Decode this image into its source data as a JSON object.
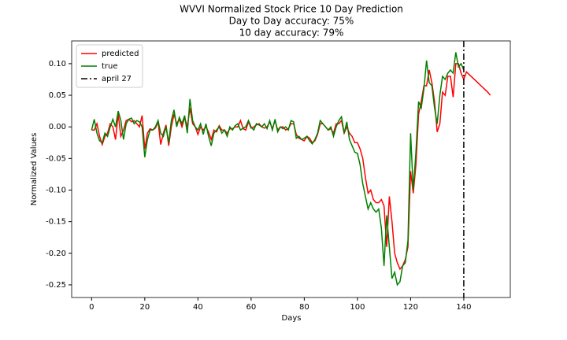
{
  "chart_data": {
    "type": "line",
    "title_lines": [
      "WVVI Normalized Stock Price 10 Day Prediction",
      "Day to Day accuracy: 75%",
      "10 day accuracy: 79%"
    ],
    "xlabel": "Days",
    "ylabel": "Normalized Values",
    "x": [
      0,
      1,
      2,
      3,
      4,
      5,
      6,
      7,
      8,
      9,
      10,
      11,
      12,
      13,
      14,
      15,
      16,
      17,
      18,
      19,
      20,
      21,
      22,
      23,
      24,
      25,
      26,
      27,
      28,
      29,
      30,
      31,
      32,
      33,
      34,
      35,
      36,
      37,
      38,
      39,
      40,
      41,
      42,
      43,
      44,
      45,
      46,
      47,
      48,
      49,
      50,
      51,
      52,
      53,
      54,
      55,
      56,
      57,
      58,
      59,
      60,
      61,
      62,
      63,
      64,
      65,
      66,
      67,
      68,
      69,
      70,
      71,
      72,
      73,
      74,
      75,
      76,
      77,
      78,
      79,
      80,
      81,
      82,
      83,
      84,
      85,
      86,
      87,
      88,
      89,
      90,
      91,
      92,
      93,
      94,
      95,
      96,
      97,
      98,
      99,
      100,
      101,
      102,
      103,
      104,
      105,
      106,
      107,
      108,
      109,
      110,
      111,
      112,
      113,
      114,
      115,
      116,
      117,
      118,
      119,
      120,
      121,
      122,
      123,
      124,
      125,
      126,
      127,
      128,
      129,
      130,
      131,
      132,
      133,
      134,
      135,
      136,
      137,
      138,
      139,
      140,
      141,
      142,
      143,
      144,
      145,
      146,
      147,
      148,
      149,
      150
    ],
    "series": [
      {
        "name": "predicted",
        "color": "#ff0000",
        "values": [
          -0.005,
          -0.005,
          0.005,
          -0.015,
          -0.028,
          -0.015,
          -0.01,
          0.005,
          0.0,
          -0.02,
          0.02,
          -0.015,
          -0.005,
          0.01,
          0.012,
          0.008,
          0.01,
          0.005,
          0.0,
          0.018,
          -0.035,
          -0.01,
          -0.003,
          -0.005,
          -0.002,
          0.008,
          -0.028,
          -0.01,
          0.003,
          -0.03,
          0.0,
          0.02,
          0.005,
          0.012,
          0.0,
          0.015,
          0.0,
          0.03,
          0.005,
          0.0,
          -0.012,
          0.0,
          -0.005,
          0.0,
          -0.008,
          -0.02,
          -0.005,
          -0.008,
          0.002,
          -0.005,
          -0.005,
          -0.01,
          -0.003,
          -0.003,
          0.0,
          0.0,
          0.01,
          -0.003,
          -0.005,
          0.008,
          -0.002,
          0.0,
          0.003,
          0.005,
          0.0,
          -0.002,
          0.0,
          0.008,
          -0.003,
          0.01,
          -0.005,
          0.0,
          0.0,
          -0.005,
          -0.003,
          0.005,
          0.005,
          -0.012,
          -0.018,
          -0.02,
          -0.022,
          -0.015,
          -0.018,
          -0.025,
          -0.022,
          -0.012,
          0.005,
          0.005,
          0.0,
          -0.005,
          -0.003,
          -0.01,
          0.005,
          0.005,
          0.01,
          -0.01,
          0.0,
          -0.01,
          -0.015,
          -0.025,
          -0.025,
          -0.035,
          -0.05,
          -0.08,
          -0.105,
          -0.1,
          -0.115,
          -0.12,
          -0.12,
          -0.115,
          -0.125,
          -0.19,
          -0.11,
          -0.15,
          -0.2,
          -0.215,
          -0.225,
          -0.22,
          -0.21,
          -0.19,
          -0.07,
          -0.105,
          -0.06,
          0.02,
          0.04,
          0.065,
          0.065,
          0.09,
          0.07,
          0.04,
          -0.008,
          0.005,
          0.055,
          0.05,
          0.08,
          0.08,
          0.047,
          0.1,
          0.1,
          0.085,
          0.075,
          0.087,
          0.083,
          0.079,
          0.075,
          0.071,
          0.067,
          0.063,
          0.059,
          0.055,
          0.05
        ]
      },
      {
        "name": "true",
        "color": "#008000",
        "values": [
          -0.005,
          0.012,
          -0.01,
          -0.022,
          -0.025,
          -0.01,
          -0.015,
          0.0,
          0.012,
          0.0,
          0.025,
          0.01,
          -0.02,
          0.005,
          0.012,
          0.014,
          0.005,
          0.01,
          0.008,
          0.0,
          -0.048,
          -0.02,
          -0.005,
          -0.005,
          0.0,
          0.01,
          -0.01,
          -0.015,
          0.0,
          -0.025,
          0.01,
          0.027,
          0.0,
          0.015,
          0.005,
          0.018,
          -0.01,
          0.044,
          0.01,
          0.0,
          -0.005,
          0.005,
          -0.012,
          0.005,
          -0.015,
          -0.03,
          -0.01,
          -0.005,
          0.0,
          -0.01,
          -0.005,
          -0.015,
          0.0,
          -0.005,
          0.002,
          0.005,
          -0.005,
          -0.002,
          0.0,
          0.01,
          0.0,
          -0.005,
          0.005,
          0.003,
          0.0,
          0.005,
          -0.003,
          0.01,
          -0.005,
          0.012,
          -0.008,
          0.0,
          -0.003,
          0.0,
          -0.005,
          0.01,
          0.008,
          -0.018,
          -0.015,
          -0.02,
          -0.018,
          -0.015,
          -0.022,
          -0.027,
          -0.02,
          -0.01,
          0.01,
          0.005,
          0.0,
          -0.005,
          0.0,
          -0.015,
          0.0,
          0.01,
          0.016,
          -0.01,
          0.008,
          -0.02,
          -0.03,
          -0.04,
          -0.042,
          -0.06,
          -0.09,
          -0.11,
          -0.13,
          -0.12,
          -0.13,
          -0.135,
          -0.13,
          -0.16,
          -0.22,
          -0.14,
          -0.19,
          -0.24,
          -0.23,
          -0.25,
          -0.245,
          -0.22,
          -0.215,
          -0.18,
          -0.01,
          -0.1,
          -0.04,
          0.04,
          0.03,
          0.06,
          0.105,
          0.07,
          0.065,
          0.03,
          0.005,
          0.05,
          0.08,
          0.075,
          0.085,
          0.09,
          0.085,
          0.118,
          0.095,
          0.1,
          0.09,
          null,
          null,
          null,
          null,
          null,
          null,
          null,
          null,
          null,
          null
        ]
      }
    ],
    "vline": {
      "x": 140,
      "label": "april 27",
      "color": "#000000"
    },
    "xlim": [
      -7.5,
      157.5
    ],
    "ylim": [
      -0.27,
      0.136
    ],
    "xticks": [
      0,
      20,
      40,
      60,
      80,
      100,
      120,
      140
    ],
    "yticks": [
      {
        "value": -0.25,
        "label": "-0.25"
      },
      {
        "value": -0.2,
        "label": "-0.20"
      },
      {
        "value": -0.15,
        "label": "-0.15"
      },
      {
        "value": -0.1,
        "label": "-0.10"
      },
      {
        "value": -0.05,
        "label": "-0.05"
      },
      {
        "value": 0,
        "label": "0.00"
      },
      {
        "value": 0.05,
        "label": "0.05"
      },
      {
        "value": 0.1,
        "label": "0.10"
      }
    ],
    "legend": "upper left",
    "grid": false
  }
}
